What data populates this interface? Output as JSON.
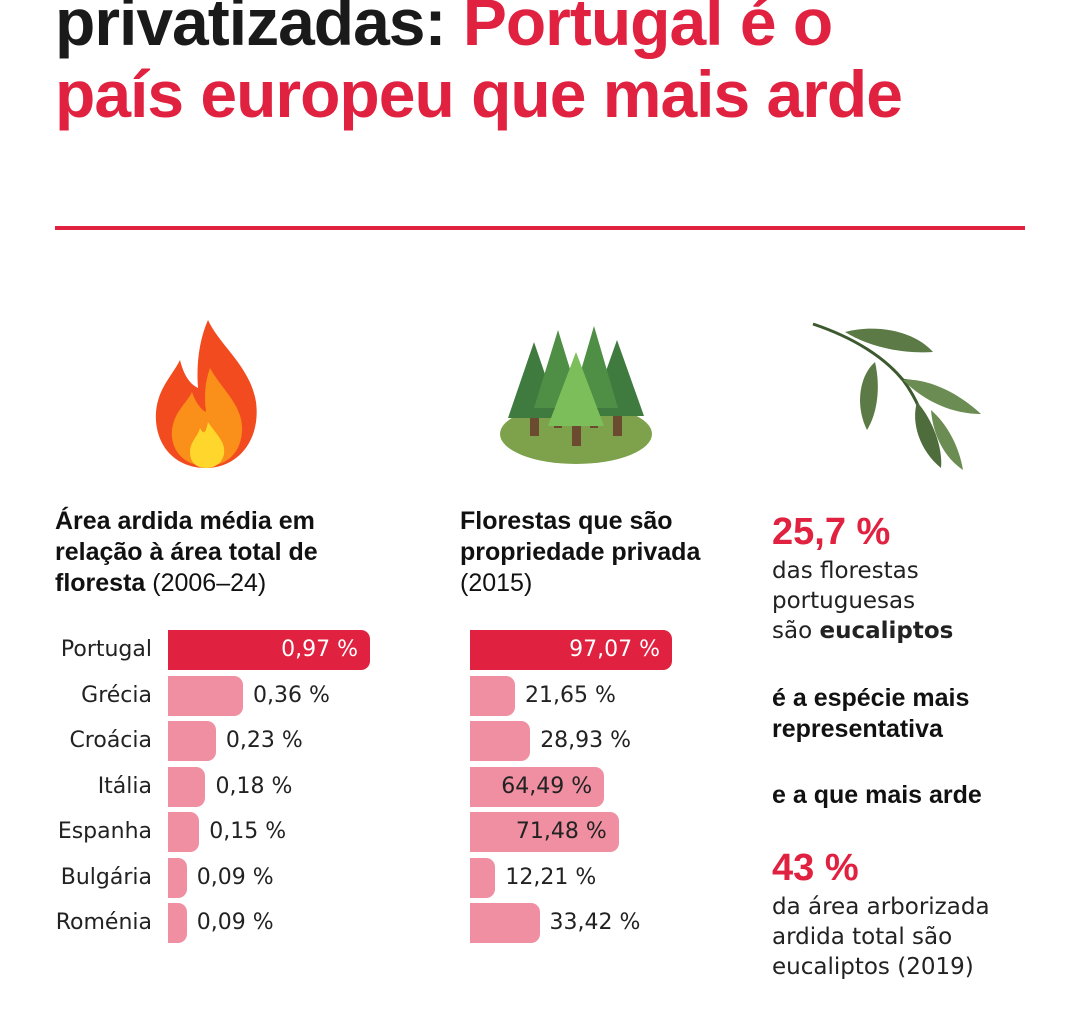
{
  "headline": {
    "line1_black": "privatizadas:",
    "line1_red": "Portugal é o",
    "line2_red": "país europeu que mais arde"
  },
  "colors": {
    "accent": "#e0213f",
    "bar_secondary": "#ef8fa1"
  },
  "icons": {
    "col1": "fire-icon",
    "col2": "forest-icon",
    "col3": "eucalyptus-leaf-icon"
  },
  "col1": {
    "title_bold": "Área ardida média em relação à área total de floresta",
    "title_year": "(2006–24)"
  },
  "col2": {
    "title_bold": "Florestas que são propriedade privada",
    "title_year": "(2015)"
  },
  "col3": {
    "stat1_value": "25,7 %",
    "stat1_l1": "das florestas",
    "stat1_l2": "portuguesas",
    "stat1_l3_pre": "são ",
    "stat1_l3_bold": "eucaliptos",
    "bold1_l1": "é a espécie mais",
    "bold1_l2": "representativa",
    "bold2": "e a que mais arde",
    "stat2_value": "43 %",
    "stat2_l1": "da área arborizada",
    "stat2_l2": "ardida total são",
    "stat2_l3": "eucaliptos (2019)"
  },
  "chart_data": [
    {
      "type": "bar",
      "orientation": "horizontal",
      "title": "Área ardida média em relação à área total de floresta (2006–24)",
      "categories": [
        "Portugal",
        "Grécia",
        "Croácia",
        "Itália",
        "Espanha",
        "Bulgária",
        "Roménia"
      ],
      "values": [
        0.97,
        0.36,
        0.23,
        0.18,
        0.15,
        0.09,
        0.09
      ],
      "labels": [
        "0,97 %",
        "0,36 %",
        "0,23 %",
        "0,18 %",
        "0,15 %",
        "0,09 %",
        "0,09 %"
      ],
      "xlim": [
        0,
        0.97
      ],
      "grid": false
    },
    {
      "type": "bar",
      "orientation": "horizontal",
      "title": "Florestas que são propriedade privada (2015)",
      "categories": [
        "Portugal",
        "Grécia",
        "Croácia",
        "Itália",
        "Espanha",
        "Bulgária",
        "Roménia"
      ],
      "values": [
        97.07,
        21.65,
        28.93,
        64.49,
        71.48,
        12.21,
        33.42
      ],
      "labels": [
        "97,07 %",
        "21,65 %",
        "28,93 %",
        "64,49 %",
        "71,48 %",
        "12,21 %",
        "33,42 %"
      ],
      "xlim": [
        0,
        97.07
      ],
      "grid": false
    }
  ]
}
